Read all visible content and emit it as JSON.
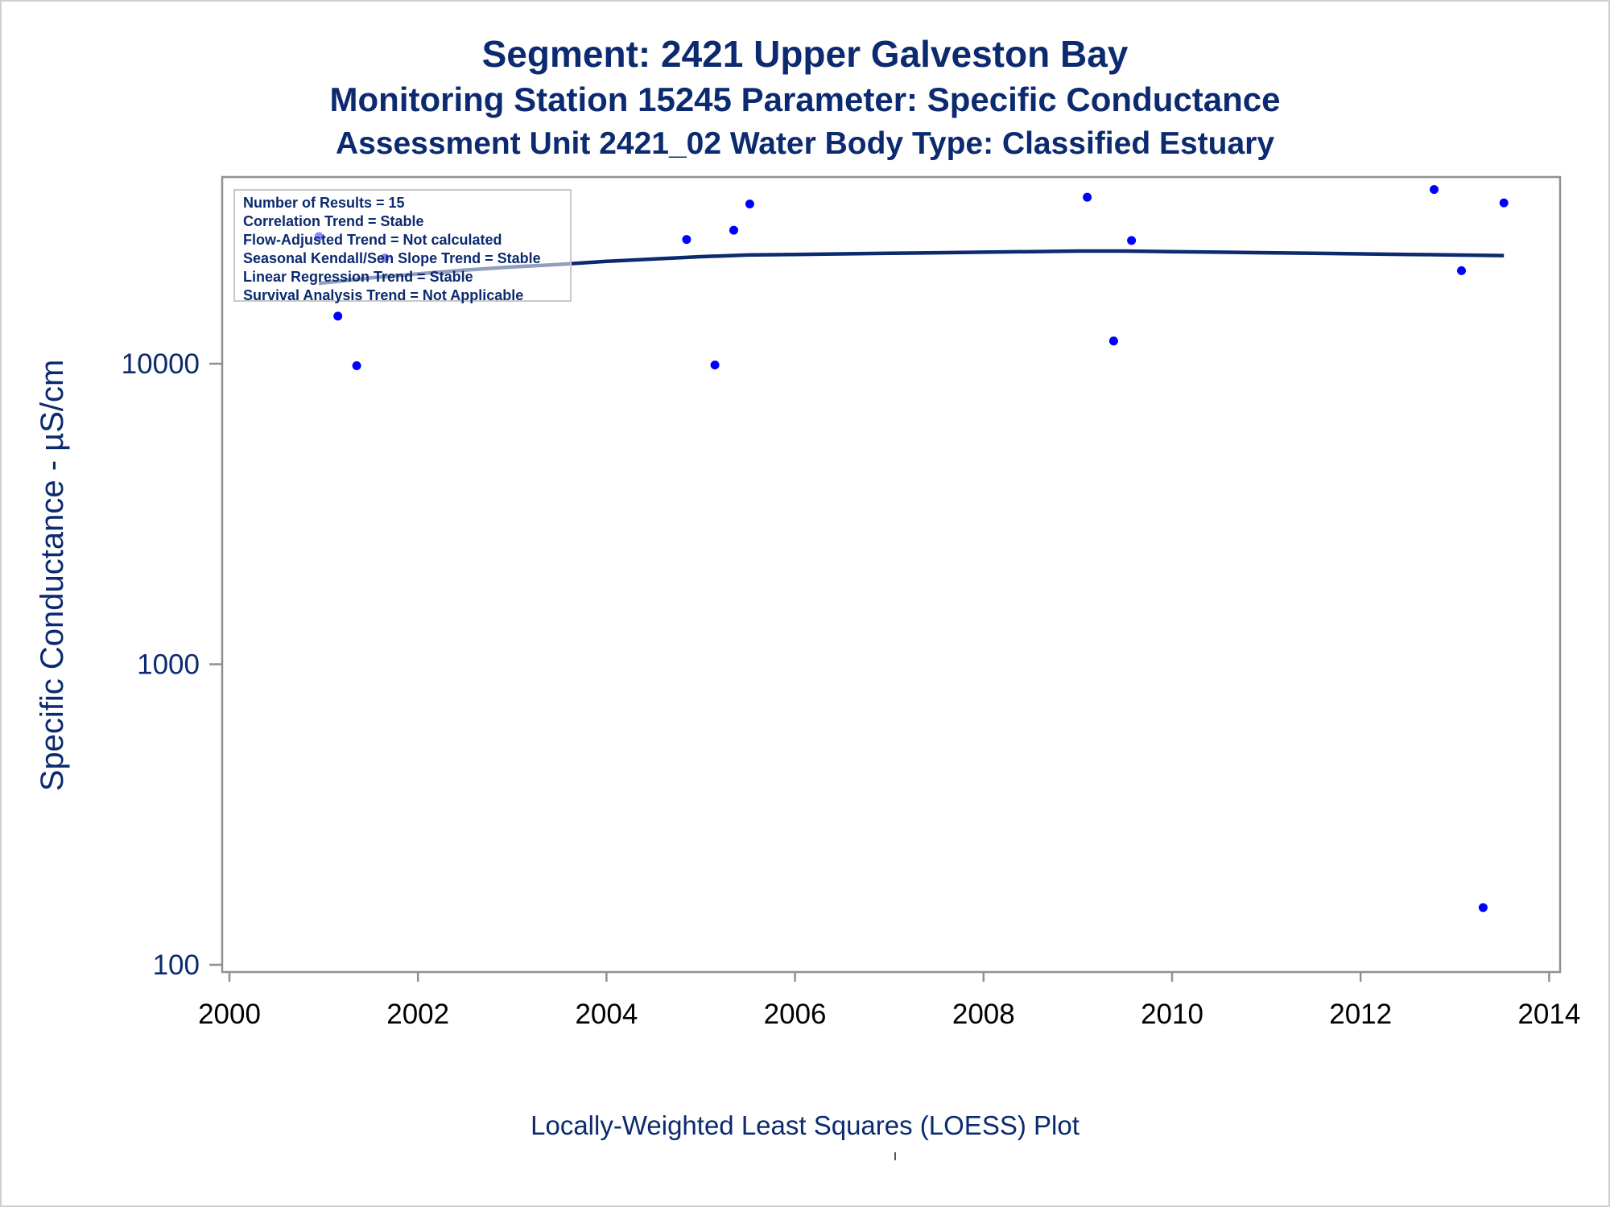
{
  "titles": {
    "line1": "Segment: 2421  Upper Galveston Bay",
    "line2": "Monitoring Station 15245 Parameter: Specific Conductance",
    "line3": "Assessment Unit 2421_02   Water Body Type: Classified Estuary"
  },
  "legend": [
    "Number of Results = 15",
    "Correlation Trend = Stable",
    "Flow-Adjusted Trend = Not calculated",
    "Seasonal Kendall/Sen Slope Trend = Stable",
    "Linear Regression Trend = Stable",
    "Survival Analysis Trend = Not Applicable"
  ],
  "footnote": "Locally-Weighted Least Squares (LOESS) Plot",
  "colors": {
    "text": "#0b2a6f",
    "points": "#0000ff",
    "line": "#0b2a6f",
    "axis": "#909090"
  },
  "chart_data": {
    "type": "scatter",
    "xlabel": "",
    "ylabel": "Specific Conductance -  µS/cm",
    "xlim": [
      2000,
      2014
    ],
    "ylim": [
      100,
      45000
    ],
    "yscale": "log",
    "x_ticks": [
      2000,
      2002,
      2004,
      2006,
      2008,
      2010,
      2012,
      2014
    ],
    "y_ticks": [
      100,
      1000,
      10000
    ],
    "grid": false,
    "legend_position": "top-left",
    "series": [
      {
        "kind": "points",
        "x": [
          2000.95,
          2001.15,
          2001.35,
          2001.65,
          2004.85,
          2005.15,
          2005.35,
          2005.52,
          2009.1,
          2009.38,
          2009.57,
          2012.78,
          2013.07,
          2013.3,
          2013.52
        ],
        "y": [
          26500,
          14400,
          9850,
          22500,
          25900,
          9900,
          27800,
          34000,
          35800,
          11900,
          25700,
          38000,
          20400,
          155,
          34300
        ]
      },
      {
        "kind": "loess",
        "x": [
          2000.95,
          2001.5,
          2002,
          2002.5,
          2003,
          2003.5,
          2004,
          2004.5,
          2005,
          2005.5,
          2006,
          2006.5,
          2007,
          2007.5,
          2008,
          2008.5,
          2009,
          2009.5,
          2010,
          2010.5,
          2011,
          2011.5,
          2012,
          2012.5,
          2013,
          2013.52
        ],
        "y": [
          18500,
          19300,
          19900,
          20500,
          21000,
          21400,
          21900,
          22300,
          22700,
          23000,
          23100,
          23200,
          23300,
          23400,
          23500,
          23600,
          23700,
          23700,
          23600,
          23500,
          23400,
          23300,
          23200,
          23100,
          23000,
          22900
        ]
      }
    ]
  }
}
